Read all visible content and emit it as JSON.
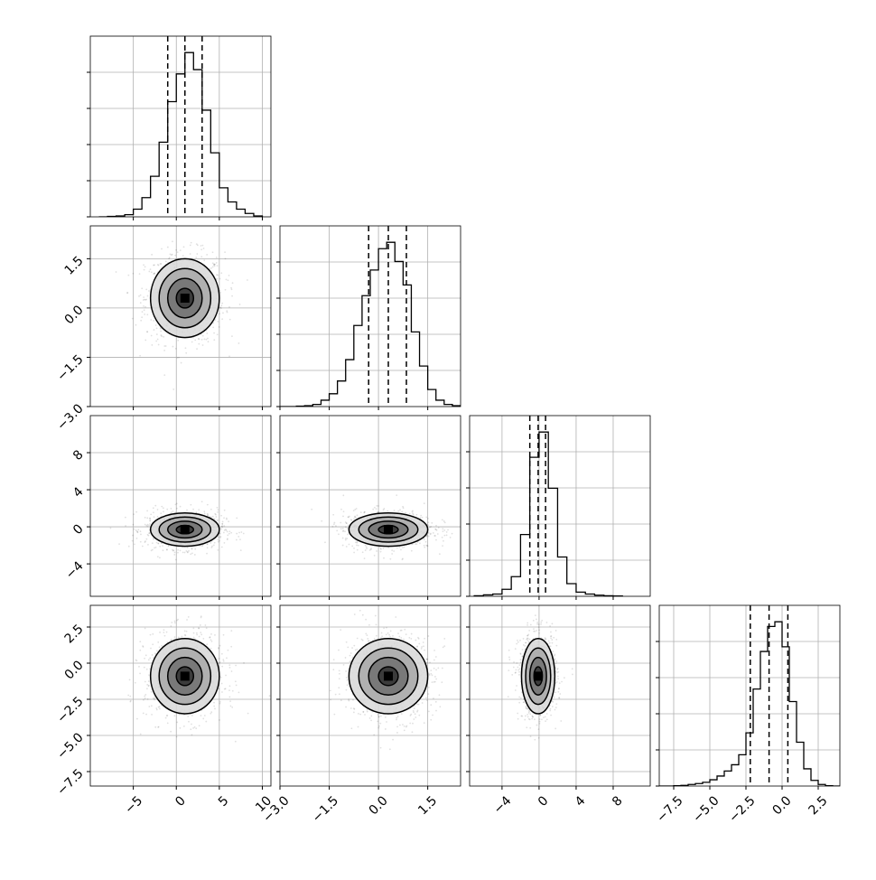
{
  "chart_data": {
    "type": "corner",
    "grid": true,
    "parameters": [
      {
        "range": [
          -10,
          11
        ],
        "ticks": [
          -5,
          0,
          5,
          10
        ],
        "tick_labels": [
          "−5",
          "0",
          "5",
          "10"
        ],
        "quantiles": [
          -1.0,
          1.0,
          3.0
        ]
      },
      {
        "range": [
          -3.0,
          2.5
        ],
        "ticks": [
          -3.0,
          -1.5,
          0.0,
          1.5
        ],
        "tick_labels": [
          "−3.0",
          "−1.5",
          "0.0",
          "1.5"
        ],
        "quantiles": [
          -0.3,
          0.3,
          0.85
        ]
      },
      {
        "range": [
          -7.5,
          12
        ],
        "ticks": [
          -4,
          0,
          4,
          8
        ],
        "tick_labels": [
          "−4",
          "0",
          "4",
          "8"
        ],
        "quantiles": [
          -1.0,
          -0.1,
          0.7
        ]
      },
      {
        "range": [
          -8.5,
          4
        ],
        "ticks": [
          -7.5,
          -5.0,
          -2.5,
          0.0,
          2.5
        ],
        "tick_labels": [
          "−7.5",
          "−5.0",
          "−2.5",
          "0.0",
          "2.5"
        ],
        "quantiles": [
          -2.2,
          -0.9,
          0.4
        ]
      }
    ],
    "histograms": [
      {
        "param": 0,
        "bin_edges": [
          -9,
          -8,
          -7,
          -6,
          -5,
          -4,
          -3,
          -2,
          -1,
          0,
          1,
          2,
          3,
          4,
          5,
          6,
          7,
          8,
          9,
          10
        ],
        "counts": [
          0,
          1,
          2,
          5,
          18,
          45,
          95,
          175,
          270,
          335,
          385,
          345,
          250,
          150,
          68,
          35,
          18,
          8,
          2
        ]
      },
      {
        "param": 1,
        "bin_edges": [
          -3.0,
          -2.75,
          -2.5,
          -2.25,
          -2.0,
          -1.75,
          -1.5,
          -1.25,
          -1.0,
          -0.75,
          -0.5,
          -0.25,
          0.0,
          0.25,
          0.5,
          0.75,
          1.0,
          1.25,
          1.5,
          1.75,
          2.0,
          2.25,
          2.5
        ],
        "counts": [
          0,
          0,
          1,
          2,
          5,
          15,
          30,
          60,
          110,
          190,
          260,
          320,
          370,
          385,
          340,
          285,
          175,
          95,
          40,
          15,
          5,
          2
        ]
      },
      {
        "param": 2,
        "bin_edges": [
          -7,
          -6,
          -5,
          -4,
          -3,
          -2,
          -1,
          0,
          1,
          2,
          3,
          4,
          5,
          6,
          7,
          8,
          9
        ],
        "counts": [
          2,
          5,
          8,
          25,
          70,
          220,
          495,
          585,
          385,
          140,
          45,
          15,
          8,
          4,
          2,
          1
        ]
      },
      {
        "param": 3,
        "bin_edges": [
          -8.5,
          -8,
          -7.5,
          -7,
          -6.5,
          -6,
          -5.5,
          -5,
          -4.5,
          -4,
          -3.5,
          -3,
          -2.5,
          -2,
          -1.5,
          -1,
          -0.5,
          0,
          0.5,
          1,
          1.5,
          2,
          2.5,
          3,
          3.5,
          4
        ],
        "counts": [
          0,
          0,
          1,
          2,
          5,
          8,
          12,
          20,
          32,
          48,
          68,
          100,
          170,
          310,
          430,
          510,
          525,
          445,
          270,
          140,
          55,
          18,
          5,
          1,
          0
        ]
      }
    ],
    "pairs": [
      {
        "x_param": 0,
        "y_param": 1,
        "center": [
          1.0,
          0.3
        ],
        "sigma": [
          2.0,
          0.6
        ]
      },
      {
        "x_param": 0,
        "y_param": 2,
        "center": [
          1.0,
          -0.3
        ],
        "sigma": [
          2.0,
          0.9
        ]
      },
      {
        "x_param": 1,
        "y_param": 2,
        "center": [
          0.3,
          -0.3
        ],
        "sigma": [
          0.6,
          0.9
        ]
      },
      {
        "x_param": 0,
        "y_param": 3,
        "center": [
          1.0,
          -0.9
        ],
        "sigma": [
          2.0,
          1.3
        ]
      },
      {
        "x_param": 1,
        "y_param": 3,
        "center": [
          0.3,
          -0.9
        ],
        "sigma": [
          0.6,
          1.3
        ]
      },
      {
        "x_param": 2,
        "y_param": 3,
        "center": [
          -0.1,
          -0.9
        ],
        "sigma": [
          0.9,
          1.3
        ]
      }
    ],
    "contour_levels_sigma": [
      0.5,
      1.0,
      1.5,
      2.0
    ]
  }
}
